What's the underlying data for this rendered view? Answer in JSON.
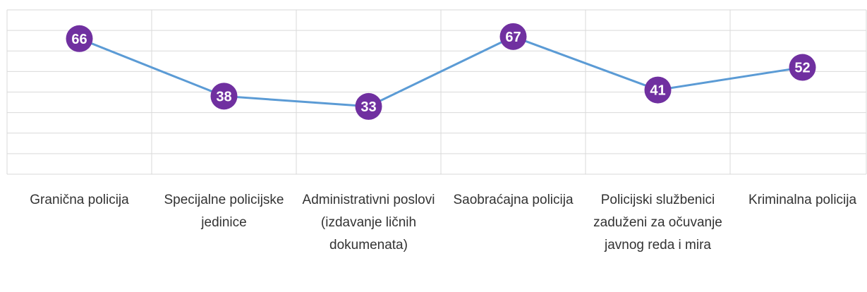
{
  "chart_data": {
    "type": "line",
    "categories": [
      "Granična policija",
      "Specijalne policijske jedinice",
      "Administrativni poslovi (izdavanje ličnih dokumenata)",
      "Saobraćajna policija",
      "Policijski službenici zaduženi za očuvanje javnog reda i mira",
      "Kriminalna policija"
    ],
    "series": [
      {
        "name": null,
        "color": "#5b9bd5",
        "marker_color": "#7030a0",
        "values": [
          66,
          38,
          33,
          67,
          41,
          52
        ]
      }
    ],
    "ylim": [
      0,
      80
    ],
    "yticks": [
      0,
      10,
      20,
      30,
      40,
      50,
      60,
      70,
      80
    ],
    "grid": true
  }
}
